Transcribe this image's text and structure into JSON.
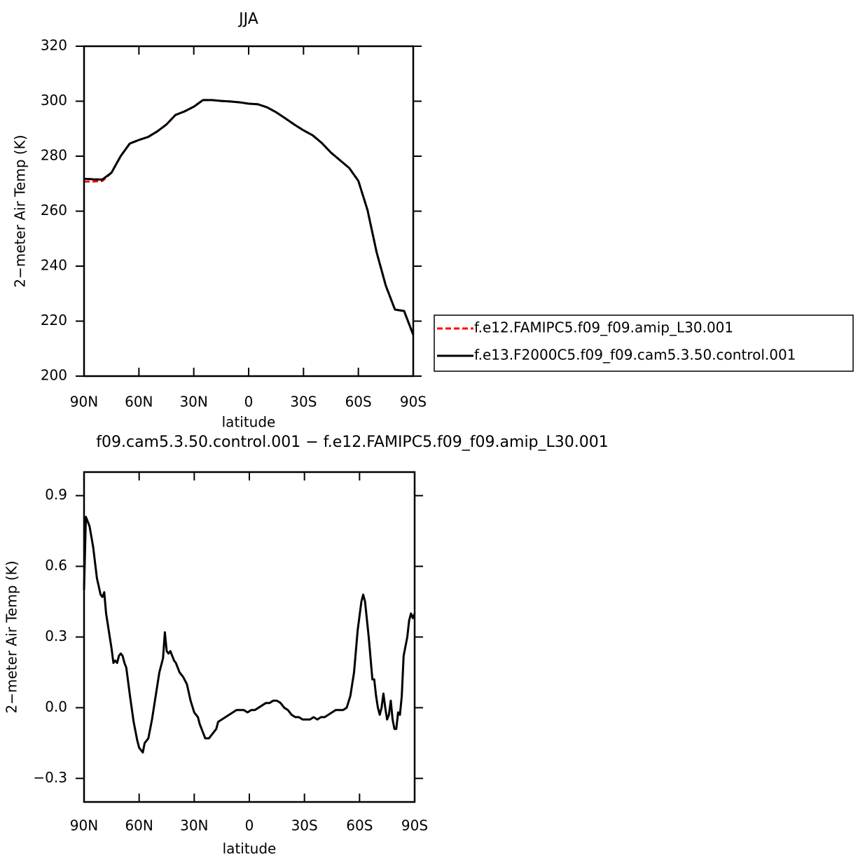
{
  "chart_data": [
    {
      "type": "line",
      "title": "JJA",
      "xlabel": "latitude",
      "ylabel": "2−meter Air Temp (K)",
      "x": [
        90,
        85,
        80,
        75,
        70,
        65,
        60,
        55,
        50,
        45,
        40,
        35,
        30,
        25,
        20,
        15,
        10,
        5,
        0,
        -5,
        -10,
        -15,
        -20,
        -25,
        -30,
        -35,
        -40,
        -45,
        -50,
        -55,
        -60,
        -65,
        -70,
        -75,
        -80,
        -85,
        -90
      ],
      "series": [
        {
          "name": "f.e12.FAMIPC5.f09_f09.amip_L30.001",
          "color": "#ff0000",
          "style": "dashed",
          "values": [
            270.8,
            270.8,
            271.0,
            274,
            280,
            284.6,
            285.9,
            287,
            289,
            291.5,
            295,
            296.3,
            298,
            300.4,
            300.4,
            300.1,
            299.9,
            299.6,
            299.1,
            298.9,
            297.8,
            296,
            293.8,
            291.5,
            289.4,
            287.6,
            284.8,
            281.3,
            278.5,
            275.7,
            271,
            260.4,
            245,
            232.9,
            224.2,
            223.7,
            215
          ]
        },
        {
          "name": "f.e13.F2000C5.f09_f09.cam5.3.50.control.001",
          "color": "#000000",
          "style": "solid",
          "values": [
            271.8,
            271.6,
            271.5,
            274,
            280,
            284.6,
            285.9,
            287,
            289,
            291.5,
            295,
            296.3,
            298,
            300.4,
            300.4,
            300.1,
            299.9,
            299.6,
            299.1,
            298.9,
            297.8,
            296,
            293.8,
            291.5,
            289.4,
            287.6,
            284.8,
            281.3,
            278.5,
            275.7,
            271,
            260.4,
            245,
            232.9,
            224.2,
            223.7,
            215
          ]
        }
      ],
      "xlim": [
        90,
        -90
      ],
      "xticks": [
        {
          "value": 90,
          "label": "90N"
        },
        {
          "value": 60,
          "label": "60N"
        },
        {
          "value": 30,
          "label": "30N"
        },
        0,
        {
          "value": -30,
          "label": "30S"
        },
        {
          "value": -60,
          "label": "60S"
        },
        {
          "value": -90,
          "label": "90S"
        }
      ],
      "ylim": [
        200,
        320
      ],
      "yticks": [
        200,
        220,
        240,
        260,
        280,
        300,
        320
      ],
      "legend": "right"
    },
    {
      "type": "line",
      "title": "f09.cam5.3.50.control.001 − f.e12.FAMIPC5.f09_f09.amip_L30.001",
      "xlabel": "latitude",
      "ylabel": "2−meter Air Temp (K)",
      "x": [
        90,
        89,
        87,
        85,
        83,
        81,
        80,
        79,
        78,
        76,
        75,
        74,
        73,
        72,
        71,
        70,
        69,
        68,
        67,
        65,
        63,
        61,
        60,
        58,
        57,
        55,
        53,
        51,
        49,
        47,
        46,
        45,
        44,
        43,
        41,
        40,
        38,
        36,
        34,
        32,
        30,
        28,
        27,
        25,
        24,
        22,
        20,
        18,
        17,
        15,
        13,
        11,
        9,
        7,
        5,
        3,
        1,
        -1,
        -3,
        -5,
        -7,
        -9,
        -11,
        -13,
        -15,
        -17,
        -19,
        -21,
        -23,
        -25,
        -27,
        -29,
        -31,
        -33,
        -35,
        -37,
        -39,
        -41,
        -43,
        -45,
        -47,
        -49,
        -51,
        -53,
        -55,
        -57,
        -59,
        -61,
        -62,
        -63,
        -65,
        -67,
        -68,
        -69,
        -70,
        -71,
        -72,
        -73,
        -74,
        -75,
        -76,
        -77,
        -78,
        -79,
        -80,
        -81,
        -82,
        -83,
        -84,
        -86,
        -87,
        -88,
        -89,
        -90
      ],
      "series": [
        {
          "color": "#000000",
          "style": "solid",
          "values": [
            0.5,
            0.81,
            0.77,
            0.68,
            0.55,
            0.48,
            0.47,
            0.49,
            0.4,
            0.3,
            0.25,
            0.19,
            0.2,
            0.19,
            0.22,
            0.23,
            0.22,
            0.19,
            0.17,
            0.05,
            -0.06,
            -0.14,
            -0.17,
            -0.19,
            -0.15,
            -0.13,
            -0.05,
            0.05,
            0.15,
            0.21,
            0.32,
            0.24,
            0.23,
            0.24,
            0.2,
            0.19,
            0.15,
            0.13,
            0.1,
            0.03,
            -0.02,
            -0.04,
            -0.07,
            -0.11,
            -0.13,
            -0.13,
            -0.11,
            -0.09,
            -0.06,
            -0.05,
            -0.04,
            -0.03,
            -0.02,
            -0.01,
            -0.01,
            -0.01,
            -0.02,
            -0.01,
            -0.01,
            0.0,
            0.01,
            0.02,
            0.02,
            0.03,
            0.03,
            0.02,
            0.0,
            -0.01,
            -0.03,
            -0.04,
            -0.04,
            -0.05,
            -0.05,
            -0.05,
            -0.04,
            -0.05,
            -0.04,
            -0.04,
            -0.03,
            -0.02,
            -0.01,
            -0.01,
            -0.01,
            0.0,
            0.05,
            0.15,
            0.33,
            0.45,
            0.48,
            0.45,
            0.3,
            0.12,
            0.12,
            0.05,
            0.0,
            -0.03,
            0.0,
            0.06,
            0.0,
            -0.05,
            -0.03,
            0.03,
            -0.05,
            -0.09,
            -0.09,
            -0.02,
            -0.03,
            0.05,
            0.22,
            0.3,
            0.37,
            0.4,
            0.38,
            0.4
          ]
        }
      ],
      "xlim": [
        90,
        -90
      ],
      "xticks": [
        {
          "value": 90,
          "label": "90N"
        },
        {
          "value": 60,
          "label": "60N"
        },
        {
          "value": 30,
          "label": "30N"
        },
        0,
        {
          "value": -30,
          "label": "30S"
        },
        {
          "value": -60,
          "label": "60S"
        },
        {
          "value": -90,
          "label": "90S"
        }
      ],
      "ylim": [
        -0.4,
        1.0
      ],
      "yticks": [
        {
          "value": -0.3,
          "label": "−0.3"
        },
        {
          "value": 0,
          "label": "0.0"
        },
        0.3,
        0.6,
        0.9
      ]
    }
  ]
}
